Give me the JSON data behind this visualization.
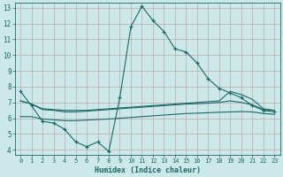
{
  "xlabel": "Humidex (Indice chaleur)",
  "bg_color": "#cce8e8",
  "grid_color": "#c0a8a8",
  "line_color": "#1a6868",
  "xlim": [
    -0.5,
    23.5
  ],
  "ylim": [
    3.7,
    13.3
  ],
  "xticks": [
    0,
    1,
    2,
    3,
    4,
    5,
    6,
    7,
    8,
    9,
    10,
    11,
    12,
    13,
    14,
    15,
    16,
    17,
    18,
    19,
    20,
    21,
    22,
    23
  ],
  "yticks": [
    4,
    5,
    6,
    7,
    8,
    9,
    10,
    11,
    12,
    13
  ],
  "line1_x": [
    0,
    1,
    2,
    3,
    4,
    5,
    6,
    7,
    8,
    9,
    10,
    11,
    12,
    13,
    14,
    15,
    16,
    17,
    18,
    19,
    20,
    21,
    22,
    23
  ],
  "line1_y": [
    7.7,
    6.8,
    5.8,
    5.7,
    5.3,
    4.5,
    4.2,
    4.5,
    3.9,
    7.3,
    11.8,
    13.1,
    12.2,
    11.5,
    10.4,
    10.2,
    9.5,
    8.5,
    7.9,
    7.6,
    7.3,
    6.8,
    6.5,
    6.4
  ],
  "line2_x": [
    0,
    1,
    2,
    3,
    4,
    5,
    6,
    7,
    8,
    9,
    10,
    11,
    12,
    13,
    14,
    15,
    16,
    17,
    18,
    19,
    20,
    21,
    22,
    23
  ],
  "line2_y": [
    7.1,
    6.9,
    6.6,
    6.55,
    6.5,
    6.5,
    6.5,
    6.55,
    6.6,
    6.65,
    6.7,
    6.75,
    6.8,
    6.85,
    6.9,
    6.95,
    7.0,
    7.05,
    7.1,
    7.7,
    7.5,
    7.2,
    6.6,
    6.5
  ],
  "line3_x": [
    0,
    1,
    2,
    3,
    4,
    5,
    6,
    7,
    8,
    9,
    10,
    11,
    12,
    13,
    14,
    15,
    16,
    17,
    18,
    19,
    20,
    21,
    22,
    23
  ],
  "line3_y": [
    7.1,
    6.9,
    6.55,
    6.5,
    6.4,
    6.4,
    6.45,
    6.5,
    6.55,
    6.6,
    6.65,
    6.7,
    6.75,
    6.8,
    6.85,
    6.9,
    6.92,
    6.95,
    7.0,
    7.1,
    7.0,
    6.85,
    6.55,
    6.5
  ],
  "line4_x": [
    0,
    1,
    2,
    3,
    4,
    5,
    6,
    7,
    8,
    9,
    10,
    11,
    12,
    13,
    14,
    15,
    16,
    17,
    18,
    19,
    20,
    21,
    22,
    23
  ],
  "line4_y": [
    6.1,
    6.1,
    5.95,
    5.9,
    5.85,
    5.85,
    5.88,
    5.92,
    5.95,
    6.0,
    6.05,
    6.1,
    6.15,
    6.2,
    6.25,
    6.3,
    6.32,
    6.35,
    6.38,
    6.4,
    6.42,
    6.4,
    6.3,
    6.25
  ]
}
